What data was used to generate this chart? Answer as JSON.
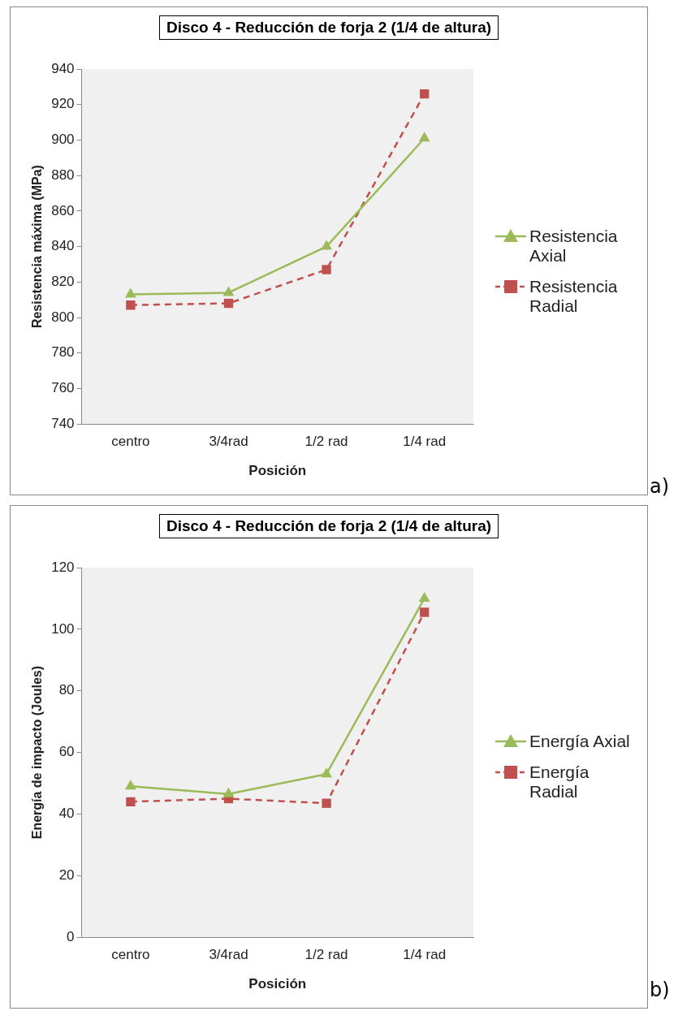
{
  "chart_data": [
    {
      "type": "line",
      "title": "Disco 4 - Reducción de forja 2   (1/4 de altura)",
      "xlabel": "Posición",
      "ylabel": "Resistencia máxima (MPa)",
      "categories": [
        "centro",
        "3/4rad",
        "1/2 rad",
        "1/4 rad"
      ],
      "ylim": [
        740,
        940
      ],
      "yticks": [
        740,
        760,
        780,
        800,
        820,
        840,
        860,
        880,
        900,
        920,
        940
      ],
      "legend": "right",
      "annotations": [
        "a)"
      ],
      "series": [
        {
          "name": "Resistencia Axial",
          "color": "#9bbb59",
          "values": [
            813,
            814,
            840,
            901
          ],
          "marker": "triangle",
          "line_style": "solid"
        },
        {
          "name": "Resistencia Radial",
          "color": "#c0504d",
          "values": [
            807,
            808,
            827,
            926
          ],
          "marker": "square",
          "line_style": "dashed"
        }
      ]
    },
    {
      "type": "line",
      "title": "Disco 4 - Reducción de forja 2   (1/4 de altura)",
      "xlabel": "Posición",
      "ylabel": "Energía de impacto (Joules)",
      "categories": [
        "centro",
        "3/4rad",
        "1/2 rad",
        "1/4 rad"
      ],
      "ylim": [
        0,
        120
      ],
      "yticks": [
        0,
        20,
        40,
        60,
        80,
        100,
        120
      ],
      "legend": "right",
      "annotations": [
        "b)"
      ],
      "series": [
        {
          "name": "Energía Axial",
          "color": "#9bbb59",
          "values": [
            49,
            46.5,
            53,
            110
          ],
          "marker": "triangle",
          "line_style": "solid"
        },
        {
          "name": "Energía Radial",
          "color": "#c0504d",
          "values": [
            44,
            45,
            43.5,
            105.5
          ],
          "marker": "square",
          "line_style": "dashed"
        }
      ]
    }
  ]
}
